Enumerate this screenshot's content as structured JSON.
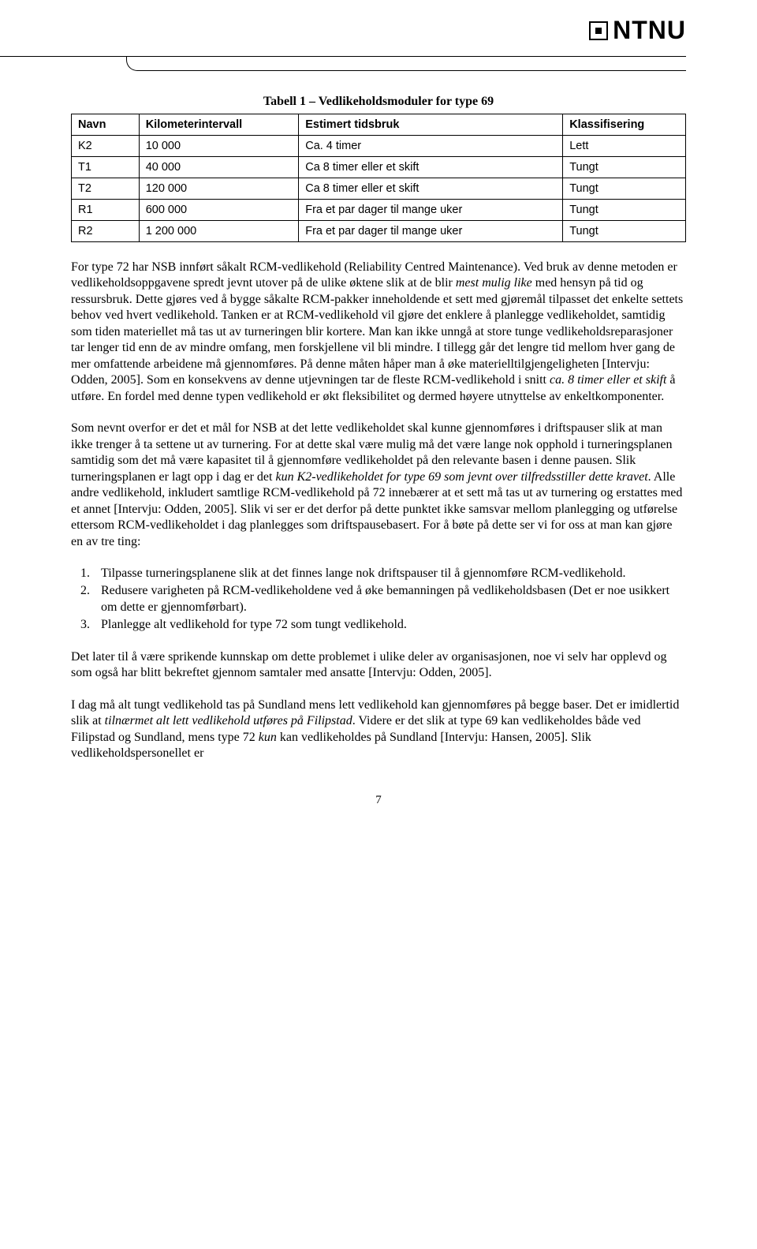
{
  "header": {
    "logo_text": "NTNU"
  },
  "table": {
    "caption": "Tabell 1 – Vedlikeholdsmoduler for type 69",
    "columns": [
      "Navn",
      "Kilometerintervall",
      "Estimert tidsbruk",
      "Klassifisering"
    ],
    "rows": [
      [
        "K2",
        "10 000",
        "Ca. 4 timer",
        "Lett"
      ],
      [
        "T1",
        "40 000",
        "Ca 8 timer eller et skift",
        "Tungt"
      ],
      [
        "T2",
        "120 000",
        "Ca 8 timer eller et skift",
        "Tungt"
      ],
      [
        "R1",
        "600 000",
        "Fra et par dager til mange uker",
        "Tungt"
      ],
      [
        "R2",
        "1 200 000",
        "Fra et par dager til mange uker",
        "Tungt"
      ]
    ]
  },
  "para1": {
    "t1": "For type 72 har NSB innført såkalt RCM-vedlikehold (Reliability Centred Maintenance). Ved bruk av denne metoden er vedlikeholdsoppgavene spredt jevnt utover på de ulike øktene slik at de blir ",
    "i1": "mest mulig like",
    "t2": " med hensyn på tid og ressursbruk. Dette gjøres ved å bygge såkalte RCM-pakker inneholdende et sett med gjøremål tilpasset det enkelte settets behov ved hvert vedlikehold. Tanken er at RCM-vedlikehold vil gjøre det enklere å planlegge vedlikeholdet, samtidig som tiden materiellet må tas ut av turneringen blir kortere. Man kan ikke unngå at store tunge vedlikeholdsreparasjoner tar lenger tid enn de av mindre omfang, men forskjellene vil bli mindre. I tillegg går det lengre tid mellom hver gang de mer omfattende arbeidene må gjennomføres. På denne måten håper man å øke materielltilgjengeligheten [Intervju: Odden, 2005]. Som en konsekvens av denne utjevningen tar de fleste RCM-vedlikehold i snitt ",
    "i2": "ca. 8 timer eller et skift",
    "t3": " å utføre. En fordel med denne typen vedlikehold er økt fleksibilitet og dermed høyere utnyttelse av enkeltkomponenter."
  },
  "para2": {
    "t1": "Som nevnt overfor er det et mål for NSB at det lette vedlikeholdet skal kunne gjennomføres i driftspauser slik at man ikke trenger å ta settene ut av turnering. For at dette skal være mulig må det være lange nok opphold i turneringsplanen samtidig som det må være kapasitet til å gjennomføre vedlikeholdet på den relevante basen i denne pausen. Slik turneringsplanen er lagt opp i dag er det ",
    "i1": "kun K2-vedlikeholdet for type 69 som jevnt over tilfredsstiller dette kravet",
    "t2": ". Alle andre vedlikehold, inkludert samtlige RCM-vedlikehold på 72 innebærer at et sett må tas ut av turnering og erstattes med et annet [Intervju: Odden, 2005]. Slik vi ser er det derfor på dette punktet ikke samsvar mellom planlegging og utførelse ettersom RCM-vedlikeholdet i dag planlegges som driftspausebasert. For å bøte på dette ser vi for oss at man kan gjøre en av tre ting:"
  },
  "list": {
    "items": [
      "Tilpasse turneringsplanene slik at det finnes lange nok driftspauser til å gjennomføre RCM-vedlikehold.",
      "Redusere varigheten på RCM-vedlikeholdene ved å øke bemanningen på vedlikeholdsbasen (Det er noe usikkert om dette er gjennomførbart).",
      "Planlegge alt vedlikehold for type 72 som tungt vedlikehold."
    ]
  },
  "para3": "Det later til å være sprikende kunnskap om dette problemet i ulike deler av organisasjonen, noe vi selv har opplevd og som også har blitt bekreftet gjennom samtaler med ansatte [Intervju: Odden, 2005].",
  "para4": {
    "t1": "I dag må alt tungt vedlikehold tas på Sundland mens lett vedlikehold kan gjennomføres på begge baser. Det er imidlertid slik at ",
    "i1": "tilnærmet alt lett vedlikehold utføres på Filipstad",
    "t2": ". Videre er det slik at type 69 kan vedlikeholdes både ved Filipstad og Sundland, mens type 72 ",
    "i2": "kun",
    "t3": " kan vedlikeholdes på Sundland [Intervju: Hansen, 2005]. Slik vedlikeholdspersonellet er"
  },
  "page_number": "7"
}
